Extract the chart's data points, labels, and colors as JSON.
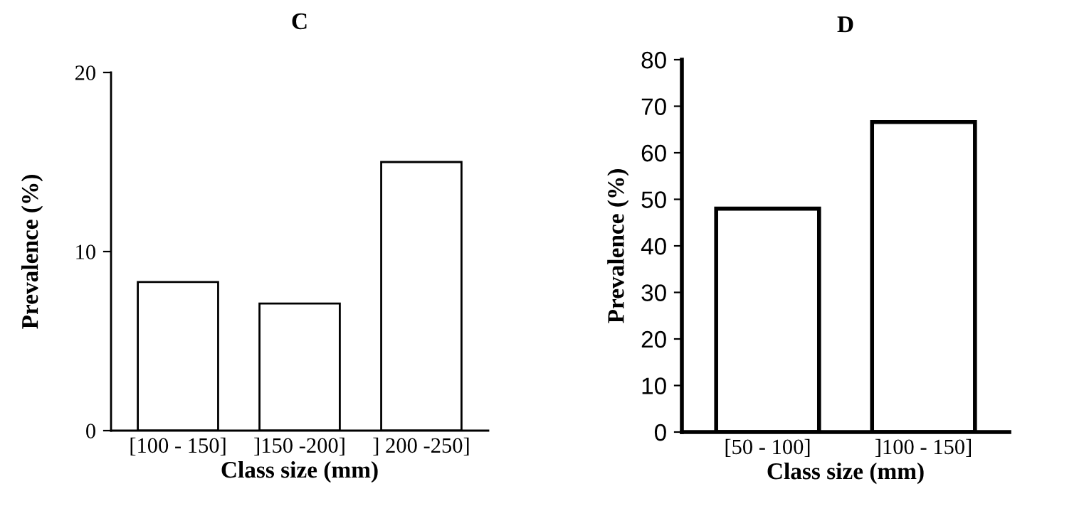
{
  "chart_data": [
    {
      "type": "bar",
      "title": "C",
      "xlabel": "Class size (mm)",
      "ylabel": "Prevalence (%)",
      "categories": [
        "[100 - 150]",
        "]150 -200]",
        "] 200 -250]"
      ],
      "values": [
        8.3,
        7.1,
        15.0
      ],
      "color": "#ffffff",
      "ylim": [
        0,
        20
      ],
      "yticks": [
        0,
        10,
        20
      ],
      "grid": false
    },
    {
      "type": "bar",
      "title": "D",
      "xlabel": "Class size (mm)",
      "ylabel": "Prevalence (%)",
      "categories": [
        "[50 - 100]",
        "]100 - 150]"
      ],
      "values": [
        48,
        66.6
      ],
      "color": "#ffffff",
      "ylim": [
        0,
        80
      ],
      "yticks": [
        0,
        10,
        20,
        30,
        40,
        50,
        60,
        70,
        80
      ],
      "grid": false
    }
  ]
}
